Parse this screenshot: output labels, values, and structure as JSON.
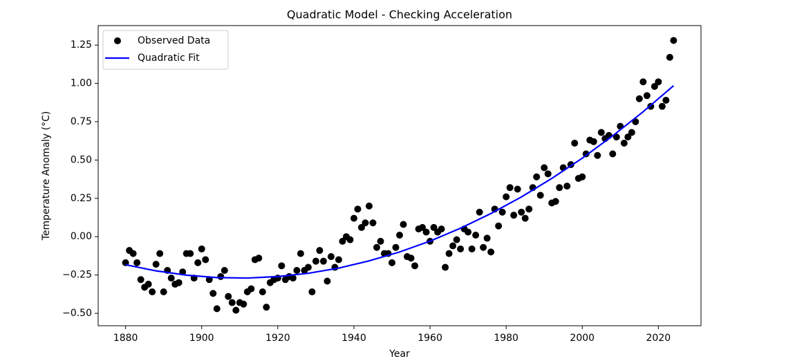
{
  "chart_data": {
    "type": "scatter",
    "title": "Quadratic Model - Checking Acceleration",
    "x_label": "Year",
    "y_label": "Temperature Anomaly (°C)",
    "xlim": [
      1872.8,
      2031.2
    ],
    "ylim": [
      -0.581,
      1.377
    ],
    "xticks": [
      1880,
      1900,
      1920,
      1940,
      1960,
      1980,
      2000,
      2020
    ],
    "yticks": [
      {
        "value": -0.5,
        "label": "−0.50"
      },
      {
        "value": -0.25,
        "label": "−0.25"
      },
      {
        "value": 0,
        "label": "0.00"
      },
      0.25,
      {
        "value": 0.5,
        "label": "0.50"
      },
      0.75,
      {
        "value": 1,
        "label": "1.00"
      },
      1.25
    ],
    "grid": false,
    "legend": "upper left",
    "series": [
      {
        "name": "Observed Data",
        "type": "scatter",
        "color": "#000000",
        "x": [
          1880,
          1881,
          1882,
          1883,
          1884,
          1885,
          1886,
          1887,
          1888,
          1889,
          1890,
          1891,
          1892,
          1893,
          1894,
          1895,
          1896,
          1897,
          1898,
          1899,
          1900,
          1901,
          1902,
          1903,
          1904,
          1905,
          1906,
          1907,
          1908,
          1909,
          1910,
          1911,
          1912,
          1913,
          1914,
          1915,
          1916,
          1917,
          1918,
          1919,
          1920,
          1921,
          1922,
          1923,
          1924,
          1925,
          1926,
          1927,
          1928,
          1929,
          1930,
          1931,
          1932,
          1933,
          1934,
          1935,
          1936,
          1937,
          1938,
          1939,
          1940,
          1941,
          1942,
          1943,
          1944,
          1945,
          1946,
          1947,
          1948,
          1949,
          1950,
          1951,
          1952,
          1953,
          1954,
          1955,
          1956,
          1957,
          1958,
          1959,
          1960,
          1961,
          1962,
          1963,
          1964,
          1965,
          1966,
          1967,
          1968,
          1969,
          1970,
          1971,
          1972,
          1973,
          1974,
          1975,
          1976,
          1977,
          1978,
          1979,
          1980,
          1981,
          1982,
          1983,
          1984,
          1985,
          1986,
          1987,
          1988,
          1989,
          1990,
          1991,
          1992,
          1993,
          1994,
          1995,
          1996,
          1997,
          1998,
          1999,
          2000,
          2001,
          2002,
          2003,
          2004,
          2005,
          2006,
          2007,
          2008,
          2009,
          2010,
          2011,
          2012,
          2013,
          2014,
          2015,
          2016,
          2017,
          2018,
          2019,
          2020,
          2021,
          2022,
          2023,
          2024
        ],
        "values": [
          -0.17,
          -0.09,
          -0.11,
          -0.17,
          -0.28,
          -0.33,
          -0.31,
          -0.36,
          -0.18,
          -0.11,
          -0.36,
          -0.22,
          -0.27,
          -0.31,
          -0.3,
          -0.23,
          -0.11,
          -0.11,
          -0.27,
          -0.17,
          -0.08,
          -0.15,
          -0.28,
          -0.37,
          -0.47,
          -0.26,
          -0.22,
          -0.39,
          -0.43,
          -0.48,
          -0.43,
          -0.44,
          -0.36,
          -0.34,
          -0.15,
          -0.14,
          -0.36,
          -0.46,
          -0.3,
          -0.28,
          -0.27,
          -0.19,
          -0.28,
          -0.26,
          -0.27,
          -0.22,
          -0.11,
          -0.22,
          -0.2,
          -0.36,
          -0.16,
          -0.09,
          -0.16,
          -0.29,
          -0.13,
          -0.2,
          -0.15,
          -0.03,
          0.0,
          -0.02,
          0.12,
          0.18,
          0.06,
          0.09,
          0.2,
          0.09,
          -0.07,
          -0.03,
          -0.11,
          -0.11,
          -0.17,
          -0.07,
          0.01,
          0.08,
          -0.13,
          -0.14,
          -0.19,
          0.05,
          0.06,
          0.03,
          -0.03,
          0.06,
          0.03,
          0.05,
          -0.2,
          -0.11,
          -0.06,
          -0.02,
          -0.08,
          0.05,
          0.03,
          -0.08,
          0.01,
          0.16,
          -0.07,
          -0.01,
          -0.1,
          0.18,
          0.07,
          0.16,
          0.26,
          0.32,
          0.14,
          0.31,
          0.16,
          0.12,
          0.18,
          0.32,
          0.39,
          0.27,
          0.45,
          0.41,
          0.22,
          0.23,
          0.32,
          0.45,
          0.33,
          0.47,
          0.61,
          0.38,
          0.39,
          0.54,
          0.63,
          0.62,
          0.53,
          0.68,
          0.64,
          0.66,
          0.54,
          0.65,
          0.72,
          0.61,
          0.65,
          0.68,
          0.75,
          0.9,
          1.01,
          0.92,
          0.85,
          0.98,
          1.01,
          0.85,
          0.89,
          1.17,
          1.28
        ]
      },
      {
        "name": "Quadratic Fit",
        "type": "line",
        "color": "#0000ff",
        "x": [
          1880,
          1888,
          1896,
          1904,
          1912,
          1920,
          1928,
          1936,
          1944,
          1952,
          1960,
          1968,
          1976,
          1984,
          1992,
          2000,
          2008,
          2016,
          2024
        ],
        "values": [
          -0.183,
          -0.223,
          -0.251,
          -0.267,
          -0.27,
          -0.26,
          -0.239,
          -0.205,
          -0.158,
          -0.1,
          -0.029,
          0.055,
          0.151,
          0.259,
          0.38,
          0.512,
          0.658,
          0.815,
          0.985
        ]
      }
    ]
  }
}
